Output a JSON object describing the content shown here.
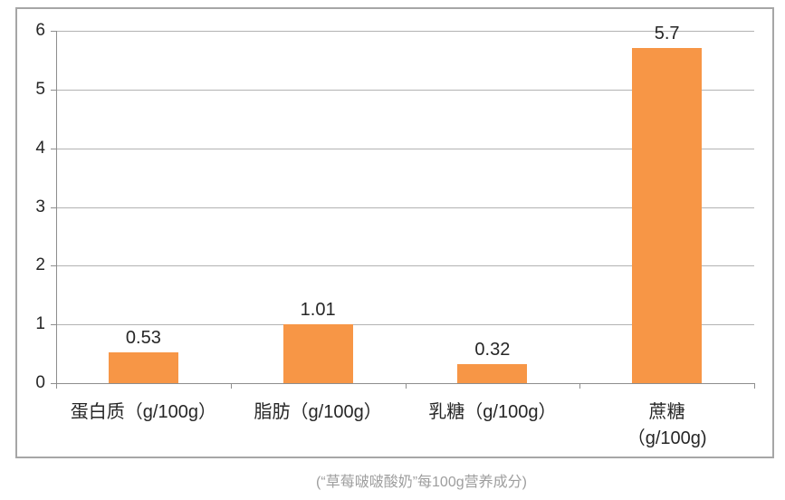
{
  "chart_data": {
    "type": "bar",
    "title": "",
    "xlabel": "",
    "ylabel": "",
    "categories": [
      "蛋白质（g/100g）",
      "脂肪（g/100g）",
      "乳糖（g/100g）",
      "蔗糖（g/100g)"
    ],
    "category_lines": [
      [
        "蛋白质（g/100g）"
      ],
      [
        "脂肪（g/100g）"
      ],
      [
        "乳糖（g/100g）"
      ],
      [
        "蔗糖",
        "（g/100g)"
      ]
    ],
    "values": [
      0.53,
      1.01,
      0.32,
      5.7
    ],
    "value_labels": [
      "0.53",
      "1.01",
      "0.32",
      "5.7"
    ],
    "ylim": [
      0,
      6
    ],
    "ytick_step": 1,
    "ytick_labels": [
      "0",
      "1",
      "2",
      "3",
      "4",
      "5",
      "6"
    ],
    "grid": true,
    "legend_position": "none",
    "bar_color": "#F79646"
  },
  "caption": "(“草莓啵啵酸奶”每100g营养成分)",
  "colors": {
    "bar": "#F79646",
    "frame_border": "#A6A6A6",
    "gridline": "#B3B3B3",
    "axis": "#8E8E8E",
    "text": "#262626",
    "caption": "#9E9E9E"
  }
}
